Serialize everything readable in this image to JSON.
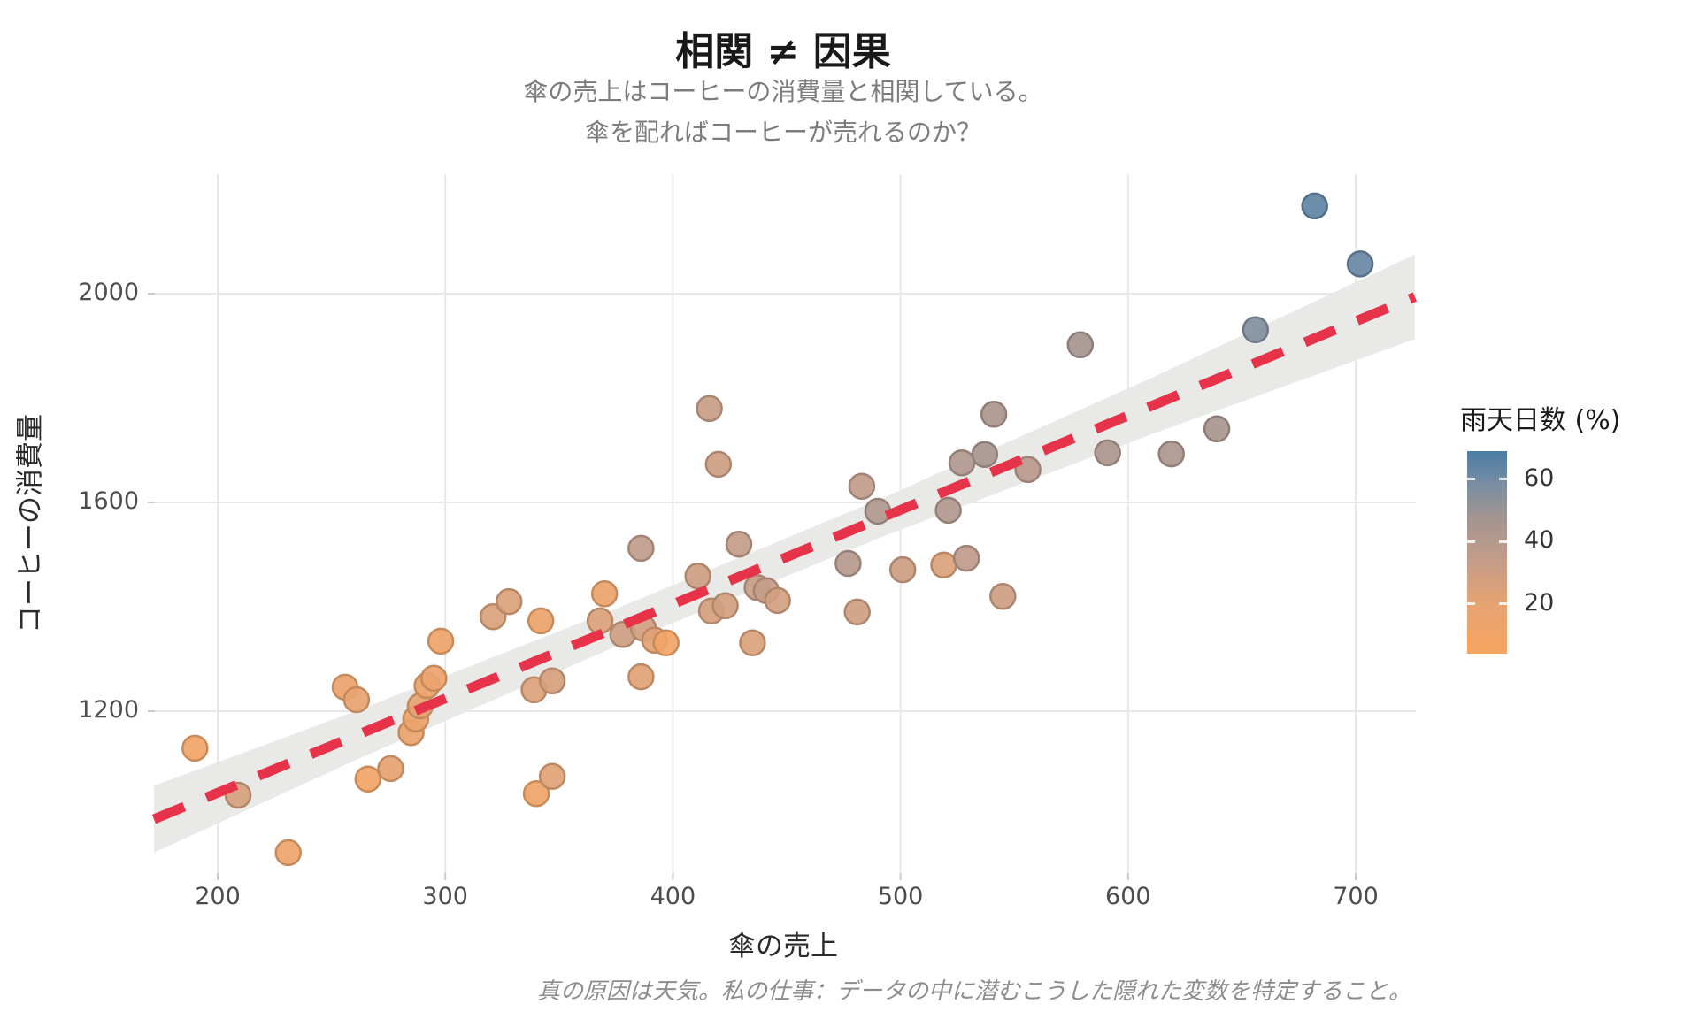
{
  "chart_data": {
    "type": "scatter",
    "title": "相関 ≠ 因果",
    "subtitle": [
      "傘の売上はコーヒーの消費量と相関している。",
      "傘を配ればコーヒーが売れるのか？"
    ],
    "caption": "真の原因は天気。私の仕事：データの中に潜むこうした隠れた変数を特定すること。",
    "xlabel": "傘の売上",
    "ylabel": "コーヒーの消費量",
    "x_ticks": [
      200,
      300,
      400,
      500,
      600,
      700
    ],
    "y_ticks": [
      2000,
      1600,
      1200
    ],
    "xlim": [
      172,
      726
    ],
    "ylim": [
      893,
      2230
    ],
    "grid": "major-only",
    "legend": {
      "title": "雨天日数 (%)",
      "ticks": [
        60,
        40,
        20
      ],
      "range": [
        4,
        69
      ],
      "stops": [
        {
          "v": 4,
          "c": "#F6A460"
        },
        {
          "v": 20,
          "c": "#E6A372"
        },
        {
          "v": 35,
          "c": "#C19C8B"
        },
        {
          "v": 48,
          "c": "#A19490"
        },
        {
          "v": 58,
          "c": "#7A8EA3"
        },
        {
          "v": 69,
          "c": "#4B7CA5"
        }
      ]
    },
    "series_note": "points = [umbrella_sales, coffee_consumption, rainy_days_pct]",
    "points": [
      [
        190,
        1129,
        10
      ],
      [
        209,
        1039,
        27
      ],
      [
        231,
        929,
        12
      ],
      [
        256,
        1246,
        15
      ],
      [
        261,
        1222,
        18
      ],
      [
        266,
        1070,
        10
      ],
      [
        276,
        1090,
        20
      ],
      [
        285,
        1159,
        16
      ],
      [
        287,
        1185,
        14
      ],
      [
        289,
        1210,
        20
      ],
      [
        292,
        1249,
        13
      ],
      [
        295,
        1263,
        15
      ],
      [
        298,
        1334,
        12
      ],
      [
        321,
        1381,
        25
      ],
      [
        328,
        1410,
        25
      ],
      [
        342,
        1373,
        13
      ],
      [
        339,
        1241,
        24
      ],
      [
        347,
        1258,
        26
      ],
      [
        340,
        1042,
        11
      ],
      [
        347,
        1075,
        22
      ],
      [
        370,
        1425,
        14
      ],
      [
        368,
        1373,
        24
      ],
      [
        378,
        1347,
        30
      ],
      [
        386,
        1512,
        35
      ],
      [
        387,
        1359,
        28
      ],
      [
        392,
        1336,
        22
      ],
      [
        397,
        1331,
        10
      ],
      [
        386,
        1266,
        22
      ],
      [
        411,
        1459,
        30
      ],
      [
        417,
        1392,
        26
      ],
      [
        423,
        1402,
        28
      ],
      [
        429,
        1520,
        34
      ],
      [
        437,
        1437,
        32
      ],
      [
        441,
        1431,
        33
      ],
      [
        446,
        1412,
        28
      ],
      [
        435,
        1331,
        25
      ],
      [
        477,
        1483,
        40
      ],
      [
        481,
        1390,
        30
      ],
      [
        490,
        1583,
        42
      ],
      [
        501,
        1471,
        30
      ],
      [
        521,
        1585,
        42
      ],
      [
        519,
        1480,
        25
      ],
      [
        529,
        1493,
        36
      ],
      [
        545,
        1420,
        30
      ],
      [
        537,
        1692,
        45
      ],
      [
        556,
        1663,
        38
      ],
      [
        591,
        1695,
        44
      ],
      [
        619,
        1693,
        43
      ],
      [
        416,
        1780,
        32
      ],
      [
        420,
        1673,
        30
      ],
      [
        483,
        1631,
        35
      ],
      [
        527,
        1676,
        42
      ],
      [
        541,
        1769,
        44
      ],
      [
        579,
        1902,
        46
      ],
      [
        639,
        1741,
        45
      ],
      [
        656,
        1931,
        56
      ],
      [
        682,
        2168,
        64
      ],
      [
        702,
        2057,
        62
      ]
    ],
    "trend": {
      "x1": 172,
      "y1": 993,
      "x2": 726,
      "y2": 1994,
      "style": "dashed"
    },
    "band": [
      {
        "x": 172,
        "lo": 929,
        "hi": 1057
      },
      {
        "x": 260,
        "lo": 1105,
        "hi": 1199
      },
      {
        "x": 376,
        "lo": 1326,
        "hi": 1398
      },
      {
        "x": 492,
        "lo": 1534,
        "hi": 1608
      },
      {
        "x": 610,
        "lo": 1730,
        "hi": 1838
      },
      {
        "x": 726,
        "lo": 1913,
        "hi": 2075
      }
    ],
    "colors": {
      "trend_line": "#E73349",
      "confidence_band": "#E9E9E8",
      "gridline": "#E8E8E8",
      "tick_mark": "#C9C9C9",
      "title_text": "#191919",
      "subtitle_text": "#7C7C7C",
      "caption_text": "#8C8C8C",
      "tick_label_text": "#4D4D4D"
    }
  }
}
